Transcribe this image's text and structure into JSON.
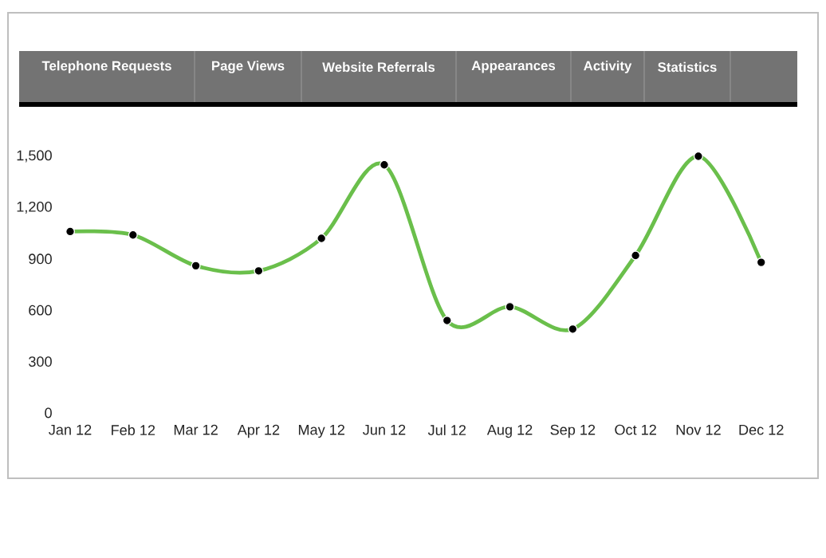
{
  "chart_data": {
    "type": "line",
    "annotations": [
      "Telephone Requests",
      "Page Views",
      "Website Referrals",
      "Appearances",
      "Activity",
      "Statistics"
    ],
    "categories": [
      "Jan 12",
      "Feb 12",
      "Mar 12",
      "Apr 12",
      "May 12",
      "Jun 12",
      "Jul 12",
      "Aug 12",
      "Sep 12",
      "Oct 12",
      "Nov 12",
      "Dec 12"
    ],
    "series": [
      {
        "color": "#6abf4b",
        "values": [
          1060,
          1040,
          860,
          830,
          1020,
          1450,
          540,
          620,
          490,
          920,
          1500,
          880
        ]
      }
    ],
    "ylim": [
      0,
      1500
    ],
    "yticks": [
      {
        "value": 0,
        "label": "0"
      },
      {
        "value": 300,
        "label": "300"
      },
      {
        "value": 600,
        "label": "600"
      },
      {
        "value": 900,
        "label": "900"
      },
      {
        "value": 1200,
        "label": "1,200"
      },
      {
        "value": 1500,
        "label": "1,500"
      }
    ],
    "grid": false,
    "marker": "circle",
    "line_style": "solid"
  }
}
